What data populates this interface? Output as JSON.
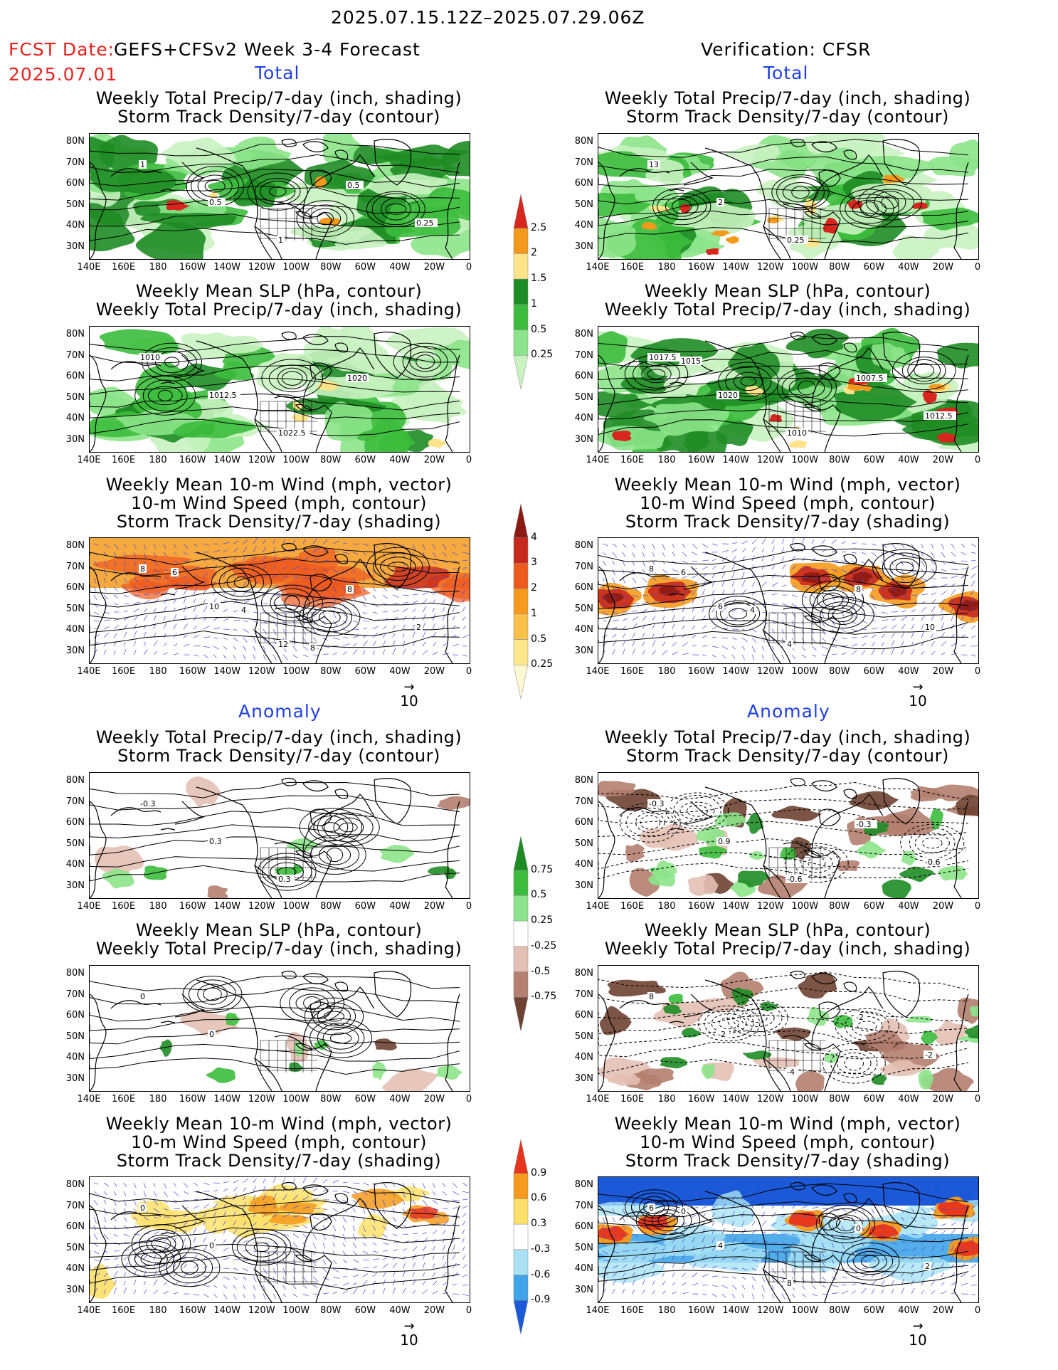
{
  "header": {
    "period": "2025.07.15.12Z–2025.07.29.06Z",
    "fcst_label": "FCST Date:",
    "fcst_date": "2025.07.01",
    "model": "GEFS+CFSv2 Week 3-4 Forecast",
    "verification": "Verification: CFSR"
  },
  "sections": {
    "total": "Total",
    "anomaly": "Anomaly"
  },
  "titles": {
    "precip_storm": [
      "Weekly Total Precip/7-day (inch, shading)",
      "Storm Track Density/7-day (contour)"
    ],
    "slp_precip": [
      "Weekly Mean SLP (hPa, contour)",
      "Weekly Total Precip/7-day (inch, shading)"
    ],
    "wind": [
      "Weekly Mean 10-m Wind (mph, vector)",
      "10-m Wind Speed (mph, contour)",
      "Storm Track Density/7-day (shading)"
    ]
  },
  "axes": {
    "lat": [
      "80N",
      "70N",
      "60N",
      "50N",
      "40N",
      "30N"
    ],
    "lon": [
      "140E",
      "160E",
      "180",
      "160W",
      "140W",
      "120W",
      "100W",
      "80W",
      "60W",
      "40W",
      "20W",
      "0"
    ]
  },
  "colorbars": {
    "precip_total": {
      "labels": [
        "2.5",
        "2",
        "1.5",
        "1",
        "0.5",
        "0.25"
      ],
      "colors": [
        "#d7261e",
        "#f39a1c",
        "#fde38a",
        "#1e8c24",
        "#3cbc3c",
        "#8ce48a",
        "#c8f2c0"
      ]
    },
    "storm_total": {
      "labels": [
        "4",
        "3",
        "2",
        "1",
        "0.5",
        "0.25"
      ],
      "colors": [
        "#8c1a12",
        "#c8281c",
        "#ee5a1e",
        "#f59a1c",
        "#f9c04a",
        "#fde68c",
        "#fff9d2"
      ]
    },
    "precip_anom": {
      "labels": [
        "0.75",
        "0.5",
        "0.25",
        "-0.25",
        "-0.5",
        "-0.75"
      ],
      "colors": [
        "#1e8c24",
        "#3cbc3c",
        "#8ce48a",
        "#ffffff",
        "#e4c0b4",
        "#b48070",
        "#6e4232"
      ]
    },
    "storm_anom": {
      "labels": [
        "0.9",
        "0.6",
        "0.3",
        "-0.3",
        "-0.6",
        "-0.9"
      ],
      "colors": [
        "#e8341c",
        "#f59a1c",
        "#fde068",
        "#ffffff",
        "#a8e2f4",
        "#3fa4e8",
        "#1a5ad8"
      ]
    }
  },
  "vector_ref": "10",
  "contour_labels": {
    "l1": [
      "1",
      "0.5",
      "1",
      "0.5",
      "0.25"
    ],
    "r1": [
      "13",
      "2",
      "0.25"
    ],
    "l2": [
      "1010",
      "1012.5",
      "1022.5",
      "1020"
    ],
    "r2": [
      "1017.5",
      "1020",
      "1010",
      "1007.5",
      "1012.5",
      "1015"
    ],
    "l3": [
      "8",
      "10",
      "12",
      "8",
      "2",
      "6",
      "4",
      "8"
    ],
    "r3": [
      "8",
      "6",
      "4",
      "8",
      "10",
      "6",
      "4"
    ],
    "l4": [
      "-0.3",
      "0.3",
      "0.3"
    ],
    "r4": [
      "-0.3",
      "0.9",
      "-0.6",
      "-0.3",
      "-0.6"
    ],
    "l5": [
      "0",
      "0"
    ],
    "r5": [
      "8",
      "-2",
      "-4",
      "-2",
      "-2"
    ],
    "l6": [
      "0",
      "0"
    ],
    "r6": [
      "6",
      "4",
      "8",
      "0",
      "2",
      "0"
    ]
  }
}
